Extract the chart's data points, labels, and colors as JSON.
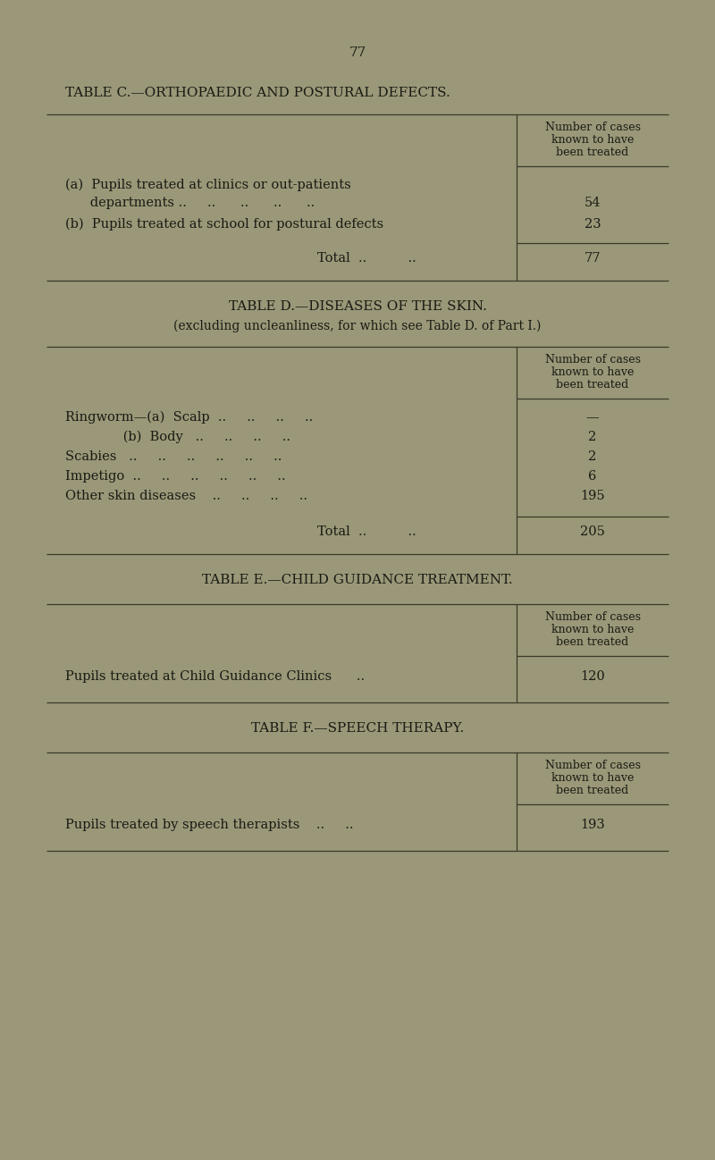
{
  "page_number": "77",
  "bg_color": "#9a9878",
  "text_color": "#1a1a14",
  "line_color": "#3a3a2a",
  "table_c_title": "TABLE C.—ORTHOPAEDIC AND POSTURAL DEFECTS.",
  "table_d_title": "TABLE D.—DISEASES OF THE SKIN.",
  "table_d_subtitle": "(excluding uncleanliness, for which see Table D. of Part I.)",
  "table_e_title": "TABLE E.—CHILD GUIDANCE TREATMENT.",
  "table_f_title": "TABLE F.—SPEECH THERAPY.",
  "col_header_line1": "Number of cases",
  "col_header_line2": "known to have",
  "col_header_line3": "been treated",
  "table_c_row_a1": "(a)  Pupils treated at clinics or out-patients",
  "table_c_row_a2": "      departments ..     ..      ..      ..      ..",
  "table_c_row_a_val": "54",
  "table_c_row_b": "(b)  Pupils treated at school for postural defects",
  "table_c_row_b_val": "23",
  "table_c_total": "Total  ..          ..",
  "table_c_total_val": "77",
  "ringworm_a": "Ringworm—(a)  Scalp  ..     ..     ..     ..",
  "ringworm_a_val": "—",
  "ringworm_b": "              (b)  Body   ..     ..     ..     ..",
  "ringworm_b_val": "2",
  "scabies": "Scabies   ..     ..     ..     ..     ..     ..",
  "scabies_val": "2",
  "impetigo": "Impetigo  ..     ..     ..     ..     ..     ..",
  "impetigo_val": "6",
  "other_skin": "Other skin diseases    ..     ..     ..     ..",
  "other_skin_val": "195",
  "table_d_total": "Total  ..          ..",
  "table_d_total_val": "205",
  "table_e_row": "Pupils treated at Child Guidance Clinics      ..",
  "table_e_val": "120",
  "table_f_row": "Pupils treated by speech therapists    ..     ..",
  "table_f_val": "193"
}
